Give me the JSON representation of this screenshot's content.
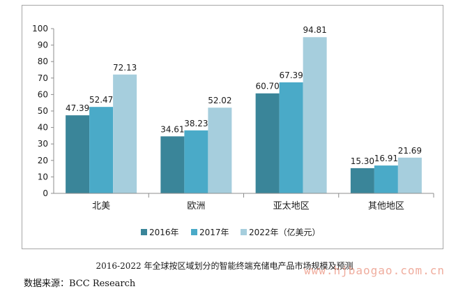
{
  "chart_data": {
    "type": "bar",
    "categories": [
      "北美",
      "欧洲",
      "亚太地区",
      "其他地区"
    ],
    "series": [
      {
        "name": "2016年",
        "values": [
          47.39,
          34.61,
          60.7,
          15.3
        ],
        "color": "#3a8599"
      },
      {
        "name": "2017年",
        "values": [
          52.47,
          38.23,
          67.39,
          16.91
        ],
        "color": "#4aaac8"
      },
      {
        "name": "2022年（亿美元）",
        "values": [
          72.13,
          52.02,
          94.81,
          21.69
        ],
        "color": "#a6cedd"
      }
    ],
    "value_labels": [
      [
        "47.39",
        "34.61",
        "60.70",
        "15.30"
      ],
      [
        "52.47",
        "38.23",
        "67.39",
        "16.91"
      ],
      [
        "72.13",
        "52.02",
        "94.81",
        "21.69"
      ]
    ],
    "ylim": [
      0,
      100
    ],
    "yticks": [
      0,
      10,
      20,
      30,
      40,
      50,
      60,
      70,
      80,
      90,
      100
    ],
    "grid": false,
    "legend_position": "bottom",
    "title": "2016-2022 年全球按区域划分的智能终端充储电产品市场规模及预测"
  },
  "source_text": "数据来源：BCC Research",
  "watermark_text": "www.hjbaogao.com.cn"
}
